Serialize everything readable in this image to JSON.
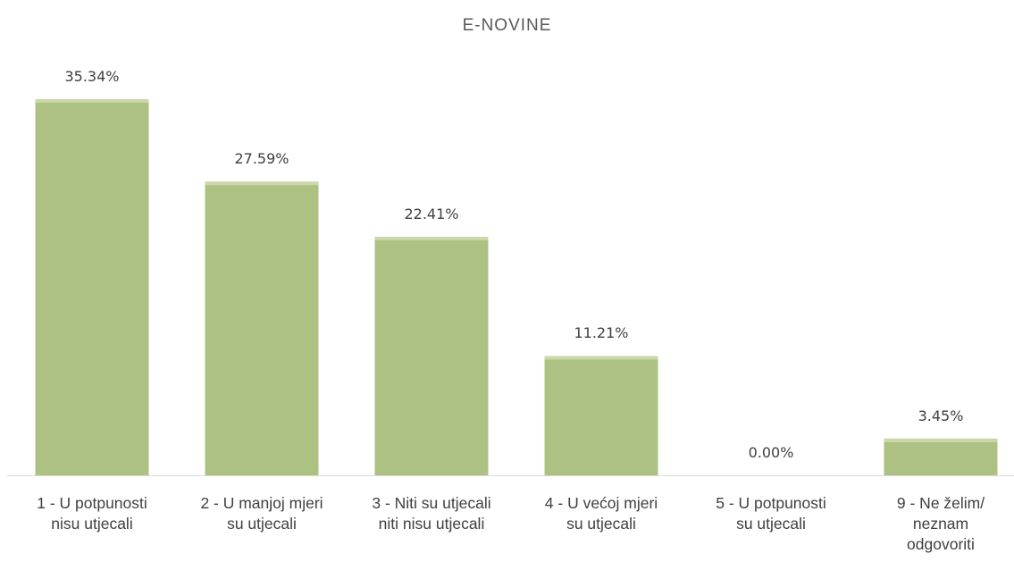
{
  "chart_data": {
    "type": "bar",
    "title": "E-NOVINE",
    "categories": [
      "1 - U potpunosti\nnisu utjecali",
      "2 - U manjoj mjeri\nsu utjecali",
      "3 - Niti su utjecali\nniti nisu utjecali",
      "4 - U većoj mjeri\nsu utjecali",
      "5 - U potpunosti\nsu utjecali",
      "9 - Ne želim/\nneznam\nodgovoriti"
    ],
    "values": [
      35.34,
      27.59,
      22.41,
      11.21,
      0,
      3.45
    ],
    "value_labels": [
      "35.34%",
      "27.59%",
      "22.41%",
      "11.21%",
      "0.00%",
      "3.45%"
    ],
    "color": "#adc183"
  }
}
